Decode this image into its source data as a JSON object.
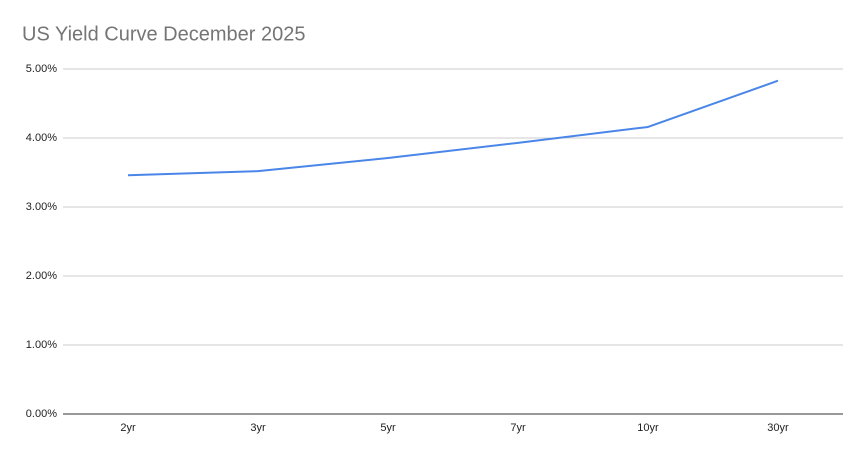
{
  "chart_data": {
    "type": "line",
    "title": "US Yield Curve December 2025",
    "categories": [
      "2yr",
      "3yr",
      "5yr",
      "7yr",
      "10yr",
      "30yr"
    ],
    "values": [
      3.46,
      3.52,
      3.71,
      3.93,
      4.16,
      4.83
    ],
    "color": "#4a86e8",
    "ylim": [
      0,
      5
    ],
    "yticks": [
      {
        "value": 0,
        "label": "0.00%"
      },
      {
        "value": 1,
        "label": "1.00%"
      },
      {
        "value": 2,
        "label": "2.00%"
      },
      {
        "value": 3,
        "label": "3.00%"
      },
      {
        "value": 4,
        "label": "4.00%"
      },
      {
        "value": 5,
        "label": "5.00%"
      }
    ],
    "grid": true
  }
}
